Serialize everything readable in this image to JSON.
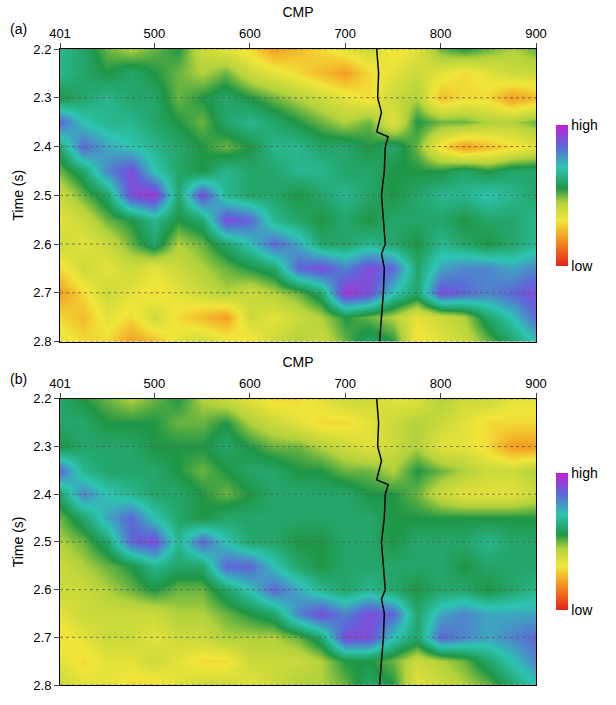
{
  "chart_data": [
    {
      "type": "heatmap",
      "title": "(a)",
      "x_label": "CMP",
      "y_label": "Time (s)",
      "x": [
        401,
        425,
        450,
        475,
        500,
        525,
        550,
        575,
        600,
        625,
        650,
        675,
        700,
        725,
        750,
        775,
        800,
        825,
        850,
        875,
        900
      ],
      "y": [
        2.2,
        2.25,
        2.3,
        2.35,
        2.4,
        2.45,
        2.5,
        2.55,
        2.6,
        2.65,
        2.7,
        2.75,
        2.8
      ],
      "z": [
        [
          0.65,
          0.6,
          0.5,
          0.45,
          0.5,
          0.55,
          0.4,
          0.35,
          0.3,
          0.2,
          0.25,
          0.3,
          0.35,
          0.4,
          0.3,
          0.35,
          0.5,
          0.55,
          0.5,
          0.45,
          0.5
        ],
        [
          0.65,
          0.6,
          0.55,
          0.6,
          0.55,
          0.5,
          0.45,
          0.5,
          0.4,
          0.35,
          0.3,
          0.25,
          0.2,
          0.3,
          0.35,
          0.4,
          0.35,
          0.3,
          0.35,
          0.4,
          0.4
        ],
        [
          0.55,
          0.6,
          0.65,
          0.6,
          0.6,
          0.5,
          0.55,
          0.6,
          0.55,
          0.5,
          0.45,
          0.4,
          0.35,
          0.3,
          0.4,
          0.45,
          0.25,
          0.3,
          0.3,
          0.2,
          0.25
        ],
        [
          0.85,
          0.7,
          0.65,
          0.65,
          0.6,
          0.55,
          0.5,
          0.6,
          0.65,
          0.6,
          0.55,
          0.5,
          0.45,
          0.5,
          0.35,
          0.55,
          0.5,
          0.5,
          0.45,
          0.45,
          0.5
        ],
        [
          0.6,
          0.85,
          0.75,
          0.7,
          0.65,
          0.6,
          0.55,
          0.5,
          0.55,
          0.65,
          0.65,
          0.6,
          0.6,
          0.55,
          0.6,
          0.5,
          0.3,
          0.2,
          0.25,
          0.3,
          0.35
        ],
        [
          0.5,
          0.6,
          0.8,
          0.9,
          0.7,
          0.6,
          0.55,
          0.65,
          0.6,
          0.6,
          0.65,
          0.65,
          0.6,
          0.6,
          0.55,
          0.55,
          0.55,
          0.6,
          0.55,
          0.6,
          0.6
        ],
        [
          0.4,
          0.5,
          0.6,
          0.9,
          0.95,
          0.6,
          0.9,
          0.65,
          0.6,
          0.6,
          0.55,
          0.6,
          0.65,
          0.6,
          0.55,
          0.6,
          0.65,
          0.65,
          0.7,
          0.65,
          0.6
        ],
        [
          0.35,
          0.4,
          0.5,
          0.55,
          0.65,
          0.55,
          0.6,
          0.9,
          0.85,
          0.65,
          0.6,
          0.55,
          0.6,
          0.55,
          0.6,
          0.6,
          0.6,
          0.55,
          0.6,
          0.6,
          0.65
        ],
        [
          0.4,
          0.35,
          0.4,
          0.5,
          0.6,
          0.45,
          0.5,
          0.6,
          0.7,
          0.85,
          0.75,
          0.6,
          0.6,
          0.65,
          0.6,
          0.55,
          0.65,
          0.6,
          0.55,
          0.6,
          0.65
        ],
        [
          0.3,
          0.4,
          0.35,
          0.4,
          0.35,
          0.4,
          0.45,
          0.5,
          0.55,
          0.6,
          0.85,
          0.9,
          0.8,
          0.9,
          0.85,
          0.6,
          0.75,
          0.8,
          0.8,
          0.75,
          0.8
        ],
        [
          0.2,
          0.3,
          0.4,
          0.35,
          0.3,
          0.35,
          0.4,
          0.45,
          0.4,
          0.45,
          0.5,
          0.6,
          0.95,
          0.9,
          0.7,
          0.6,
          0.9,
          0.85,
          0.8,
          0.85,
          0.9
        ],
        [
          0.3,
          0.25,
          0.35,
          0.3,
          0.4,
          0.3,
          0.25,
          0.2,
          0.4,
          0.35,
          0.4,
          0.45,
          0.55,
          0.5,
          0.45,
          0.35,
          0.4,
          0.45,
          0.6,
          0.7,
          0.85
        ],
        [
          0.35,
          0.3,
          0.3,
          0.2,
          0.25,
          0.35,
          0.4,
          0.35,
          0.3,
          0.4,
          0.45,
          0.4,
          0.5,
          0.6,
          0.55,
          0.3,
          0.35,
          0.4,
          0.5,
          0.6,
          0.7
        ]
      ],
      "xlim": [
        401,
        900
      ],
      "xticks": [
        401,
        500,
        600,
        700,
        800,
        900
      ],
      "ylim": [
        2.2,
        2.8
      ],
      "yticks": [
        2.2,
        2.3,
        2.4,
        2.5,
        2.6,
        2.7,
        2.8
      ],
      "colorbar_range": [
        0,
        1
      ],
      "colorbar_ticks": [
        {
          "value": 1,
          "label": "high"
        },
        {
          "value": 0,
          "label": "low"
        }
      ],
      "grid": true,
      "well_log": {
        "color": "#000000",
        "x": [
          733,
          735,
          734,
          738,
          733,
          745,
          742,
          741,
          738,
          740,
          742,
          738,
          741,
          740,
          738,
          736
        ],
        "y": [
          2.2,
          2.25,
          2.3,
          2.33,
          2.37,
          2.38,
          2.4,
          2.45,
          2.5,
          2.55,
          2.6,
          2.62,
          2.65,
          2.7,
          2.75,
          2.8
        ]
      }
    },
    {
      "type": "heatmap",
      "title": "(b)",
      "x_label": "CMP",
      "y_label": "Time (s)",
      "x": [
        401,
        425,
        450,
        475,
        500,
        525,
        550,
        575,
        600,
        625,
        650,
        675,
        700,
        725,
        750,
        775,
        800,
        825,
        850,
        875,
        900
      ],
      "y": [
        2.2,
        2.25,
        2.3,
        2.35,
        2.4,
        2.45,
        2.5,
        2.55,
        2.6,
        2.65,
        2.7,
        2.75,
        2.8
      ],
      "z": [
        [
          0.6,
          0.55,
          0.5,
          0.45,
          0.5,
          0.55,
          0.45,
          0.4,
          0.35,
          0.3,
          0.3,
          0.35,
          0.4,
          0.4,
          0.35,
          0.35,
          0.45,
          0.4,
          0.4,
          0.35,
          0.35
        ],
        [
          0.6,
          0.6,
          0.55,
          0.55,
          0.55,
          0.5,
          0.5,
          0.55,
          0.45,
          0.4,
          0.35,
          0.3,
          0.3,
          0.35,
          0.4,
          0.45,
          0.4,
          0.35,
          0.3,
          0.3,
          0.3
        ],
        [
          0.55,
          0.6,
          0.6,
          0.6,
          0.55,
          0.55,
          0.55,
          0.6,
          0.55,
          0.5,
          0.5,
          0.45,
          0.4,
          0.35,
          0.4,
          0.45,
          0.35,
          0.35,
          0.3,
          0.2,
          0.2
        ],
        [
          0.85,
          0.65,
          0.6,
          0.6,
          0.6,
          0.55,
          0.5,
          0.55,
          0.6,
          0.6,
          0.55,
          0.55,
          0.5,
          0.5,
          0.45,
          0.55,
          0.5,
          0.45,
          0.4,
          0.4,
          0.45
        ],
        [
          0.6,
          0.8,
          0.7,
          0.65,
          0.6,
          0.6,
          0.55,
          0.5,
          0.55,
          0.6,
          0.6,
          0.6,
          0.6,
          0.55,
          0.55,
          0.5,
          0.4,
          0.35,
          0.35,
          0.35,
          0.4
        ],
        [
          0.5,
          0.6,
          0.75,
          0.85,
          0.7,
          0.6,
          0.55,
          0.6,
          0.6,
          0.6,
          0.6,
          0.6,
          0.6,
          0.6,
          0.55,
          0.55,
          0.55,
          0.55,
          0.55,
          0.55,
          0.55
        ],
        [
          0.45,
          0.5,
          0.6,
          0.85,
          0.9,
          0.65,
          0.85,
          0.7,
          0.6,
          0.6,
          0.55,
          0.55,
          0.6,
          0.6,
          0.55,
          0.6,
          0.6,
          0.6,
          0.65,
          0.6,
          0.6
        ],
        [
          0.4,
          0.45,
          0.5,
          0.55,
          0.65,
          0.6,
          0.6,
          0.85,
          0.85,
          0.7,
          0.6,
          0.55,
          0.6,
          0.6,
          0.6,
          0.6,
          0.6,
          0.55,
          0.6,
          0.6,
          0.6
        ],
        [
          0.4,
          0.4,
          0.45,
          0.5,
          0.55,
          0.5,
          0.5,
          0.6,
          0.7,
          0.85,
          0.75,
          0.65,
          0.6,
          0.65,
          0.6,
          0.55,
          0.6,
          0.6,
          0.55,
          0.6,
          0.65
        ],
        [
          0.35,
          0.4,
          0.4,
          0.4,
          0.4,
          0.45,
          0.45,
          0.5,
          0.55,
          0.6,
          0.8,
          0.9,
          0.8,
          0.9,
          0.85,
          0.6,
          0.75,
          0.8,
          0.75,
          0.75,
          0.75
        ],
        [
          0.3,
          0.35,
          0.4,
          0.4,
          0.35,
          0.4,
          0.4,
          0.45,
          0.45,
          0.45,
          0.5,
          0.6,
          0.9,
          0.9,
          0.7,
          0.6,
          0.85,
          0.8,
          0.75,
          0.8,
          0.85
        ],
        [
          0.35,
          0.3,
          0.35,
          0.35,
          0.4,
          0.35,
          0.3,
          0.3,
          0.4,
          0.4,
          0.4,
          0.45,
          0.55,
          0.55,
          0.5,
          0.4,
          0.45,
          0.5,
          0.6,
          0.7,
          0.8
        ],
        [
          0.4,
          0.35,
          0.35,
          0.3,
          0.3,
          0.35,
          0.4,
          0.4,
          0.35,
          0.4,
          0.45,
          0.45,
          0.5,
          0.6,
          0.55,
          0.35,
          0.4,
          0.45,
          0.5,
          0.6,
          0.7
        ]
      ],
      "xlim": [
        401,
        900
      ],
      "xticks": [
        401,
        500,
        600,
        700,
        800,
        900
      ],
      "ylim": [
        2.2,
        2.8
      ],
      "yticks": [
        2.2,
        2.3,
        2.4,
        2.5,
        2.6,
        2.7,
        2.8
      ],
      "colorbar_range": [
        0,
        1
      ],
      "colorbar_ticks": [
        {
          "value": 1,
          "label": "high"
        },
        {
          "value": 0,
          "label": "low"
        }
      ],
      "grid": true,
      "well_log": {
        "color": "#000000",
        "x": [
          733,
          735,
          734,
          738,
          733,
          745,
          742,
          741,
          738,
          740,
          742,
          738,
          741,
          740,
          738,
          736
        ],
        "y": [
          2.2,
          2.25,
          2.3,
          2.33,
          2.37,
          2.38,
          2.4,
          2.45,
          2.5,
          2.55,
          2.6,
          2.62,
          2.65,
          2.7,
          2.75,
          2.8
        ]
      }
    }
  ]
}
